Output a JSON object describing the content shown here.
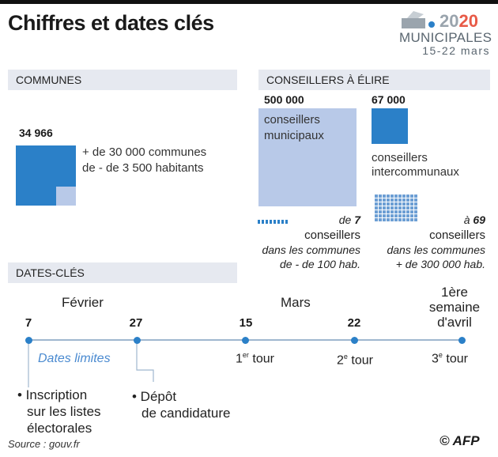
{
  "title": "Chiffres et dates clés",
  "logo": {
    "year_a": "20",
    "year_b": "20",
    "label": "MUNICIPALES",
    "dates": "15-22 mars"
  },
  "communes": {
    "header": "COMMUNES",
    "value": "34 966",
    "desc_line1": "+ de 30 000 communes",
    "desc_line2": "de - de 3 500 habitants"
  },
  "conseillers": {
    "header": "CONSEILLERS À ÉLIRE",
    "municipaux_value": "500 000",
    "municipaux_line1": "conseillers",
    "municipaux_line2": "municipaux",
    "inter_value": "67 000",
    "inter_line1": "conseillers",
    "inter_line2": "intercommunaux",
    "small_prefix": "de",
    "small_value": "7",
    "small_word": "conseillers",
    "small_line2": "dans les communes",
    "small_line3": "de - de 100 hab.",
    "large_prefix": "à",
    "large_value": "69",
    "large_word": "conseillers",
    "large_line2": "dans les communes",
    "large_line3": "+ de 300 000 hab."
  },
  "dates": {
    "header": "DATES-CLÉS",
    "month_feb": "Février",
    "month_mar": "Mars",
    "avril_line1": "1ère",
    "avril_line2": "semaine",
    "avril_line3": "d'avril",
    "d7": "7",
    "d27": "27",
    "d15": "15",
    "d22": "22",
    "limits": "Dates limites",
    "tour1_num": "1",
    "tour1_sup": "er",
    "tour1_word": " tour",
    "tour2_num": "2",
    "tour2_sup": "e",
    "tour2_word": " tour",
    "tour3_num": "3",
    "tour3_sup": "e",
    "tour3_word": " tour",
    "note1_line1": "• Inscription",
    "note1_line2": "sur les listes",
    "note1_line3": "électorales",
    "note2_line1": "• Dépôt",
    "note2_line2": "de candidature"
  },
  "source": "Source : gouv.fr",
  "credit": "© AFP",
  "colors": {
    "blue": "#2b80c8",
    "light_blue": "#b8c9e8",
    "section_bg": "#e6e9f0",
    "accent_red": "#e85a47"
  }
}
